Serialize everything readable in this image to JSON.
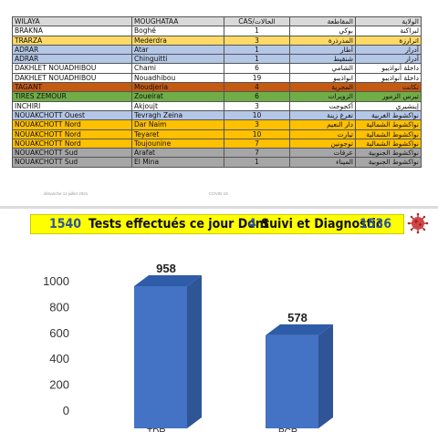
{
  "table": {
    "header": {
      "wilaya": "WILAYA",
      "moughataa": "MOUGHATAA",
      "cas": "CAS/الحالات",
      "muqataa_ar": "المقاطعة",
      "wilaya_ar": "الولاية",
      "color": "#d9d9d9"
    },
    "rows": [
      {
        "wilaya": "BRAKNA",
        "moughataa": "Boghé",
        "cas": "1",
        "muqataa_ar": "بوكي",
        "wilaya_ar": "لبراكنة",
        "color": "#ffffff"
      },
      {
        "wilaya": "TRARZA",
        "moughataa": "Mederdra",
        "cas": "3",
        "muqataa_ar": "المذرذرة",
        "wilaya_ar": "اترارزة",
        "color": "#ffd966"
      },
      {
        "wilaya": "ADRAR",
        "moughataa": "Atar",
        "cas": "1",
        "muqataa_ar": "أطار",
        "wilaya_ar": "آدرار",
        "color": "#b4c7e7"
      },
      {
        "wilaya": "ADRAR",
        "moughataa": "Chinguitti",
        "cas": "1",
        "muqataa_ar": "شنقيط",
        "wilaya_ar": "آدرار",
        "color": "#b4c7e7"
      },
      {
        "wilaya": "DAKHLET NOUADHIBOU",
        "moughataa": "Chami",
        "cas": "6",
        "muqataa_ar": "الشامي",
        "wilaya_ar": "داخلة أنواذيبو",
        "color": "#ffffff"
      },
      {
        "wilaya": "DAKHLET NOUADHIBOU",
        "moughataa": "Nouadhibou",
        "cas": "19",
        "muqataa_ar": "انواذيبو",
        "wilaya_ar": "داخلة أنواذيبو",
        "color": "#ffffff"
      },
      {
        "wilaya": "TAGANT",
        "moughataa": "Moudjeria",
        "cas": "4",
        "muqataa_ar": "المجرية",
        "wilaya_ar": "تكانت",
        "color": "#c55a11"
      },
      {
        "wilaya": "TIRES ZEMOUR",
        "moughataa": "Zoueirat",
        "cas": "6",
        "muqataa_ar": "الزويرات",
        "wilaya_ar": "تيرس الزمور",
        "color": "#70ad47"
      },
      {
        "wilaya": "INCHIRI",
        "moughataa": "Akjoujt",
        "cas": "3",
        "muqataa_ar": "أكجوجت",
        "wilaya_ar": "إينشيري",
        "color": "#ffffff"
      },
      {
        "wilaya": "NOUAKCHOTT Ouest",
        "moughataa": "Tevragh Zeina",
        "cas": "10",
        "muqataa_ar": "تفرغ زينة",
        "wilaya_ar": "نواكشوط الغربية",
        "color": "#b4c7e7"
      },
      {
        "wilaya": "NOUAKCHOTT Nord",
        "moughataa": "Dar Naim",
        "cas": "3",
        "muqataa_ar": "دار النعيم",
        "wilaya_ar": "نواكشوط الشمالية",
        "color": "#ffc000"
      },
      {
        "wilaya": "NOUAKCHOTT Nord",
        "moughataa": "Teyaret",
        "cas": "10",
        "muqataa_ar": "تيارت",
        "wilaya_ar": "نواكشوط الشمالية",
        "color": "#ffc000"
      },
      {
        "wilaya": "NOUAKCHOTT Nord",
        "moughataa": "Toujounine",
        "cas": "7",
        "muqataa_ar": "توجونين",
        "wilaya_ar": "نواكشوط الشمالية",
        "color": "#ffc000"
      },
      {
        "wilaya": "NOUAKCHOTT Sud",
        "moughataa": "Arafat",
        "cas": "7",
        "muqataa_ar": "عرفات",
        "wilaya_ar": "نواكشوط الجنوبية",
        "color": "#a6a6a6"
      },
      {
        "wilaya": "NOUAKCHOTT Sud",
        "moughataa": "El Mina",
        "cas": "1",
        "muqataa_ar": "الميناء",
        "wilaya_ar": "نواكشوط الجنوبية",
        "color": "#a6a6a6"
      }
    ]
  },
  "footer": {
    "date": "dimanche 11 juillet 2021",
    "topic": "COVID-19"
  },
  "banner": {
    "tests_count": "1540",
    "tests_label": "Tests effectués ce jour  Dont",
    "suivi_count": "4",
    "suivi_label": "Suivi et Diagnostic",
    "diag_count": "1536",
    "background": "#ffff00",
    "count_color": "#2f5597",
    "icon": "coronavirus-icon"
  },
  "chart_data": {
    "type": "bar",
    "categories": [
      "TDR",
      "PCR"
    ],
    "values": [
      958,
      578
    ],
    "data_labels": [
      "958",
      "578"
    ],
    "ylim": [
      0,
      1000
    ],
    "yticks": [
      0,
      200,
      400,
      600,
      800,
      1000
    ],
    "grid": false,
    "style": "3d",
    "bar_color": "#4472c4",
    "bar_side_color": "#2f5597",
    "bar_top_color": "#2e5ca8"
  }
}
